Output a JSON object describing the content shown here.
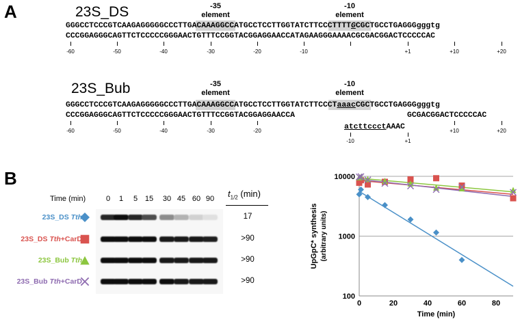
{
  "panel_a": {
    "letter": "A",
    "construct_1": {
      "name": "23S_DS",
      "element_35": {
        "num": "-35",
        "word": "element"
      },
      "element_10": {
        "num": "-10",
        "word": "element"
      },
      "top_strand": [
        "GGGCCTCCCGTCAAGAGGGGGCCC",
        "TTGACA",
        "AAGGCCATGCCTCCTTGG",
        "TATCTT",
        "CCCTTTT",
        "G",
        "CGCTGCCTGAGGG",
        "gggtg"
      ],
      "bottom_strand": "CCCGGAGGGCAGTTCTCCCCCGGGAACTGTTTCCGGTACGGAGGAACCATAGAAGGGAAAACGCGACGGACTCCCCCAC",
      "ticks": [
        "-60",
        "-50",
        "-40",
        "-30",
        "-20",
        "-10",
        "+1",
        "+10",
        "+20"
      ]
    },
    "construct_2": {
      "name": "23S_Bub",
      "element_35": {
        "num": "-35",
        "word": "element"
      },
      "element_10": {
        "num": "-10",
        "word": "element"
      },
      "top_strand": [
        "GGGCCTCCCGTCAAGAGGGGGCCC",
        "TTGACA",
        "AAGGCCATGCCTCCTTGG",
        "TATCTT",
        "CCCT",
        "aaac",
        "CGCTGCCTGAGGG",
        "gggtg"
      ],
      "bottom_strand_left": "CCCGGAGGGCAGTTCTCCCCCGGGAACTGTTTCCGGTACGGAGGAACCA",
      "bottom_strand_right": "GCGACGGACTCCCCCAC",
      "bubble_strand": [
        "atcttccct",
        "AAAC"
      ],
      "bubble_ticks": [
        "-10",
        "+1"
      ],
      "ticks": [
        "-60",
        "-50",
        "-40",
        "-30",
        "-20",
        "+10",
        "+20"
      ]
    }
  },
  "panel_b": {
    "letter": "B",
    "gel": {
      "time_header": "Time (min)",
      "times": [
        "0",
        "1",
        "5",
        "15",
        "30",
        "45",
        "60",
        "90"
      ],
      "t_half_header": "t",
      "t_half_sub": "1/2",
      "t_half_unit": "(min)",
      "lanes": [
        {
          "label_prefix": "23S_DS ",
          "label_ital": "Tth",
          "label_suffix": "",
          "color": "#4a90c8",
          "marker": "diamond",
          "t_half": "17",
          "intensity": [
            0.85,
            0.95,
            0.85,
            0.7,
            0.45,
            0.3,
            0.18,
            0.12
          ]
        },
        {
          "label_prefix": "23S_DS ",
          "label_ital": "Tth",
          "label_suffix": "+CarD",
          "color": "#d9534f",
          "marker": "square",
          "t_half": ">90",
          "intensity": [
            0.95,
            0.95,
            0.95,
            0.95,
            0.9,
            0.9,
            0.9,
            0.88
          ]
        },
        {
          "label_prefix": "23S_Bub ",
          "label_ital": "Tth",
          "label_suffix": "",
          "color": "#8cc63f",
          "marker": "triangle",
          "t_half": ">90",
          "intensity": [
            0.95,
            0.95,
            0.95,
            0.95,
            0.9,
            0.9,
            0.9,
            0.9
          ]
        },
        {
          "label_prefix": "23S_Bub ",
          "label_ital": "Tth",
          "label_suffix": "+CarD",
          "color": "#8e6bb0",
          "marker": "x",
          "t_half": ">90",
          "intensity": [
            0.95,
            0.95,
            0.95,
            0.95,
            0.95,
            0.9,
            0.9,
            0.9
          ]
        }
      ]
    }
  },
  "chart_data": {
    "type": "scatter",
    "xlabel": "Time (min)",
    "ylabel": "UpGpC* synthesis",
    "ylabel2": "(arbitrary units)",
    "x_ticks": [
      "0",
      "20",
      "40",
      "60",
      "80"
    ],
    "y_ticks": [
      "100",
      "1000",
      "10000"
    ],
    "xlim": [
      0,
      90
    ],
    "ylim": [
      100,
      10000
    ],
    "y_scale": "log",
    "grid": "horizontal",
    "series": [
      {
        "color": "#4a90c8",
        "marker": "diamond",
        "x": [
          0,
          1,
          5,
          15,
          30,
          45,
          60
        ],
        "y": [
          5000,
          6000,
          4500,
          3300,
          1900,
          1150,
          400
        ],
        "fit": {
          "x": [
            0,
            90
          ],
          "y": [
            5600,
            145
          ]
        }
      },
      {
        "color": "#d9534f",
        "marker": "square",
        "x": [
          0,
          1,
          5,
          15,
          30,
          45,
          60,
          90
        ],
        "y": [
          7800,
          8600,
          7300,
          8100,
          8900,
          9300,
          7000,
          4300
        ],
        "fit": {
          "x": [
            0,
            90
          ],
          "y": [
            8500,
            5000
          ]
        }
      },
      {
        "color": "#8cc63f",
        "marker": "triangle",
        "x": [
          0,
          1,
          5,
          15,
          30,
          45,
          60,
          90
        ],
        "y": [
          9600,
          9800,
          9000,
          8400,
          7600,
          6500,
          6300,
          5900
        ],
        "fit": {
          "x": [
            0,
            90
          ],
          "y": [
            9300,
            5500
          ]
        }
      },
      {
        "color": "#8e6bb0",
        "marker": "x",
        "x": [
          0,
          1,
          5,
          15,
          30,
          45,
          60,
          90
        ],
        "y": [
          9800,
          9900,
          8700,
          7600,
          6900,
          6000,
          6600,
          5400
        ],
        "fit": {
          "x": [
            0,
            90
          ],
          "y": [
            8900,
            4600
          ]
        }
      }
    ]
  }
}
